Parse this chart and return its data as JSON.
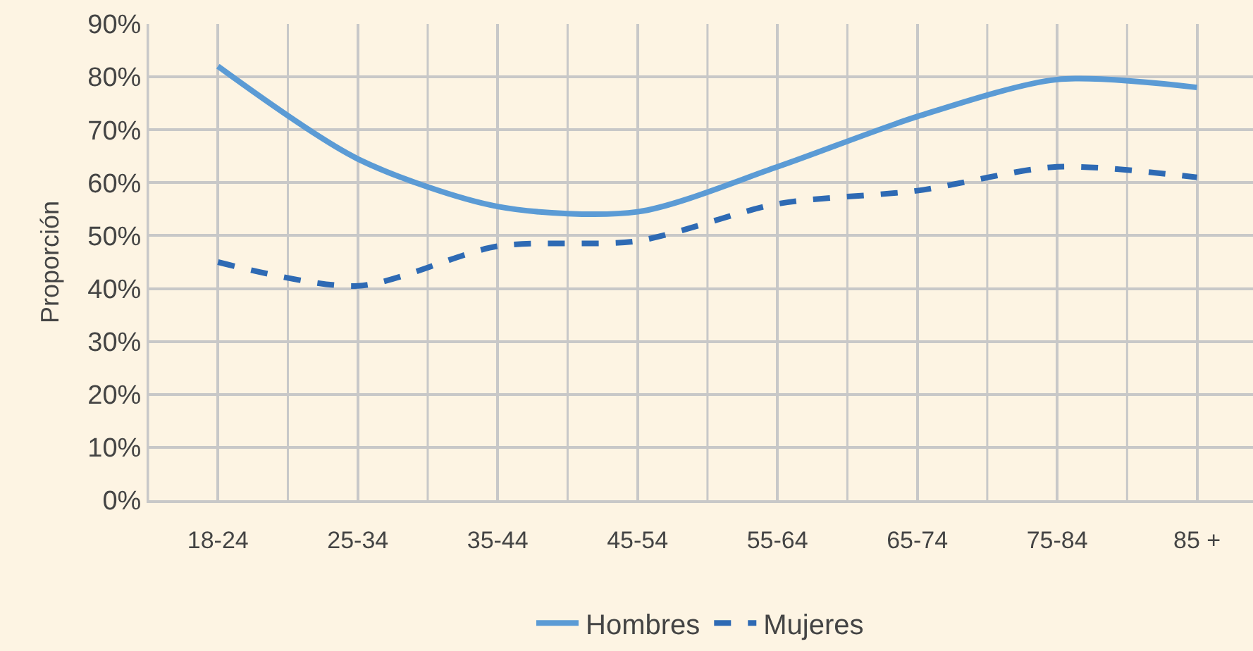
{
  "chart_data": {
    "type": "line",
    "ylabel": "Proporción",
    "categories": [
      "18-24",
      "25-34",
      "35-44",
      "45-54",
      "55-64",
      "65-74",
      "75-84",
      "85 +"
    ],
    "series": [
      {
        "name": "Hombres",
        "color": "#5b9bd5",
        "line_style": "solid",
        "values": [
          82,
          64.5,
          55.5,
          54.5,
          63,
          72.5,
          79.5,
          78
        ]
      },
      {
        "name": "Mujeres",
        "color": "#2e6ab4",
        "line_style": "dashed",
        "values": [
          45,
          40.5,
          48,
          49,
          56,
          58.5,
          63,
          61
        ]
      }
    ],
    "ylim": [
      0,
      90
    ],
    "yticks": [
      {
        "value": 0,
        "label": "0%"
      },
      {
        "value": 10,
        "label": "10%"
      },
      {
        "value": 20,
        "label": "20%"
      },
      {
        "value": 30,
        "label": "30%"
      },
      {
        "value": 40,
        "label": "40%"
      },
      {
        "value": 50,
        "label": "50%"
      },
      {
        "value": 60,
        "label": "60%"
      },
      {
        "value": 70,
        "label": "70%"
      },
      {
        "value": 80,
        "label": "80%"
      },
      {
        "value": 90,
        "label": "90%"
      }
    ],
    "grid": true,
    "legend": "bottom",
    "marker": "none"
  }
}
